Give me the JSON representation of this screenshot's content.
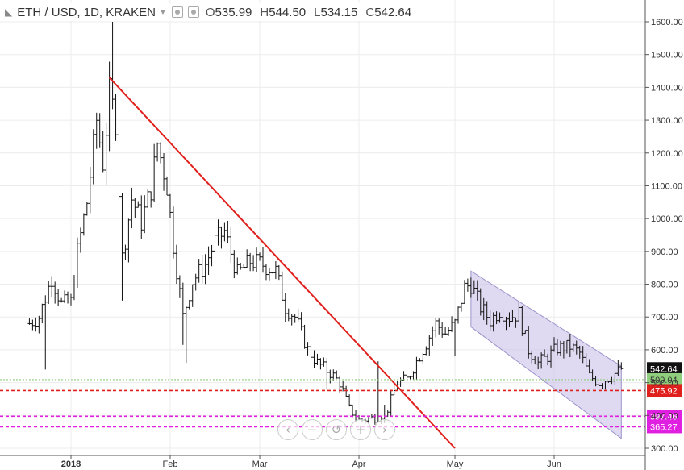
{
  "header": {
    "symbol": "ETH / USD, 1D, KRAKEN",
    "dropdown_icon": "caret-down-icon",
    "settings_icon": "visibility-icon",
    "ohlc": {
      "open_label": "O",
      "open": "535.99",
      "high_label": "H",
      "high": "544.50",
      "low_label": "L",
      "low": "534.15",
      "close_label": "C",
      "close": "542.64"
    }
  },
  "nav": {
    "buttons": [
      {
        "name": "scroll-left-button",
        "icon": "chevron-left-icon",
        "glyph": "‹"
      },
      {
        "name": "zoom-out-button",
        "icon": "minus-icon",
        "glyph": "−"
      },
      {
        "name": "reset-button",
        "icon": "reset-icon",
        "glyph": "↺"
      },
      {
        "name": "zoom-in-button",
        "icon": "plus-icon",
        "glyph": "+"
      },
      {
        "name": "scroll-right-button",
        "icon": "chevron-right-icon",
        "glyph": "›"
      }
    ]
  },
  "chart_data": {
    "type": "ohlc",
    "title": "ETH / USD, 1D, KRAKEN",
    "ylim": [
      300,
      1650
    ],
    "y_ticks": [
      300,
      400,
      500,
      600,
      700,
      800,
      900,
      1000,
      1100,
      1200,
      1300,
      1400,
      1500,
      1600
    ],
    "y_tick_labels": [
      "300.00",
      "400.00",
      "500.00",
      "600.00",
      "700.00",
      "800.00",
      "900.00",
      "1000.00",
      "1100.00",
      "1200.00",
      "1300.00",
      "1400.00",
      "1500.00",
      "1600.00"
    ],
    "x_start": "2017-12-19",
    "x_end": "2018-06-22",
    "x_ticks": [
      {
        "date": "2018-01-01",
        "label": "2018",
        "bold": true
      },
      {
        "date": "2018-02-01",
        "label": "Feb"
      },
      {
        "date": "2018-03-01",
        "label": "Mar"
      },
      {
        "date": "2018-04-01",
        "label": "Apr"
      },
      {
        "date": "2018-05-01",
        "label": "May"
      },
      {
        "date": "2018-06-01",
        "label": "Jun"
      }
    ],
    "grid": true,
    "colors": {
      "bar": "#111111",
      "grid": "#ececec",
      "trendline": "#e0201c",
      "channel_fill": "#c9c2e8",
      "channel_line": "#9d94cc"
    },
    "anchors": [
      [
        "2017-12-19",
        680
      ],
      [
        "2017-12-22",
        700
      ],
      [
        "2017-12-26",
        820
      ],
      [
        "2017-12-29",
        740
      ],
      [
        "2018-01-01",
        745
      ],
      [
        "2018-01-03",
        900
      ],
      [
        "2018-01-06",
        1050
      ],
      [
        "2018-01-09",
        1300
      ],
      [
        "2018-01-11",
        1170
      ],
      [
        "2018-01-13",
        1380
      ],
      [
        "2018-01-15",
        1300
      ],
      [
        "2018-01-17",
        880
      ],
      [
        "2018-01-20",
        1060
      ],
      [
        "2018-01-23",
        990
      ],
      [
        "2018-01-26",
        1090
      ],
      [
        "2018-01-28",
        1230
      ],
      [
        "2018-01-31",
        1100
      ],
      [
        "2018-02-02",
        920
      ],
      [
        "2018-02-05",
        700
      ],
      [
        "2018-02-08",
        810
      ],
      [
        "2018-02-12",
        860
      ],
      [
        "2018-02-15",
        930
      ],
      [
        "2018-02-18",
        960
      ],
      [
        "2018-02-22",
        830
      ],
      [
        "2018-02-26",
        870
      ],
      [
        "2018-03-02",
        860
      ],
      [
        "2018-03-06",
        840
      ],
      [
        "2018-03-09",
        730
      ],
      [
        "2018-03-12",
        700
      ],
      [
        "2018-03-16",
        600
      ],
      [
        "2018-03-19",
        560
      ],
      [
        "2018-03-23",
        530
      ],
      [
        "2018-03-26",
        500
      ],
      [
        "2018-03-29",
        420
      ],
      [
        "2018-04-01",
        385
      ],
      [
        "2018-04-04",
        390
      ],
      [
        "2018-04-07",
        395
      ],
      [
        "2018-04-10",
        420
      ],
      [
        "2018-04-13",
        500
      ],
      [
        "2018-04-16",
        510
      ],
      [
        "2018-04-19",
        565
      ],
      [
        "2018-04-22",
        620
      ],
      [
        "2018-04-25",
        680
      ],
      [
        "2018-04-28",
        650
      ],
      [
        "2018-05-01",
        680
      ],
      [
        "2018-05-04",
        790
      ],
      [
        "2018-05-06",
        800
      ],
      [
        "2018-05-09",
        730
      ],
      [
        "2018-05-12",
        690
      ],
      [
        "2018-05-15",
        720
      ],
      [
        "2018-05-18",
        700
      ],
      [
        "2018-05-21",
        710
      ],
      [
        "2018-05-24",
        600
      ],
      [
        "2018-05-27",
        560
      ],
      [
        "2018-05-30",
        580
      ],
      [
        "2018-06-02",
        605
      ],
      [
        "2018-06-06",
        610
      ],
      [
        "2018-06-09",
        590
      ],
      [
        "2018-06-12",
        520
      ],
      [
        "2018-06-15",
        500
      ],
      [
        "2018-06-19",
        520
      ],
      [
        "2018-06-22",
        542.64
      ]
    ],
    "spikes": [
      [
        "2018-01-14",
        1600
      ],
      [
        "2018-01-17",
        750
      ],
      [
        "2018-02-06",
        560
      ],
      [
        "2018-02-05",
        615
      ],
      [
        "2017-12-24",
        540
      ],
      [
        "2018-04-07",
        565
      ],
      [
        "2018-03-22",
        480
      ],
      [
        "2018-05-01",
        580
      ]
    ],
    "trendline": {
      "from": [
        "2018-01-13",
        1430
      ],
      "to": [
        "2018-05-01",
        300
      ]
    },
    "channel": {
      "upper": {
        "from": [
          "2018-05-06",
          840
        ],
        "to": [
          "2018-06-22",
          550
        ]
      },
      "lower": {
        "from": [
          "2018-05-06",
          670
        ],
        "to": [
          "2018-06-22",
          330
        ]
      }
    },
    "levels": [
      {
        "value": 542.64,
        "label": "542.64",
        "line": "none",
        "color": "#111111",
        "text_color": "#ffffff",
        "type": "current-price"
      },
      {
        "value": 509.04,
        "label": "509.04",
        "line": "dotted",
        "color": "#8fce7c",
        "text_color": "#333333",
        "type": "support"
      },
      {
        "value": 475.92,
        "label": "475.92",
        "line": "dashed",
        "color": "#e0201c",
        "text_color": "#ffffff",
        "type": "support"
      },
      {
        "value": 397.46,
        "label": "397.46",
        "line": "dashed",
        "color": "#e020e0",
        "text_color": "#ffffff",
        "type": "support"
      },
      {
        "value": 365.27,
        "label": "365.27",
        "line": "dashed",
        "color": "#e020e0",
        "text_color": "#ffffff",
        "type": "support"
      }
    ]
  }
}
